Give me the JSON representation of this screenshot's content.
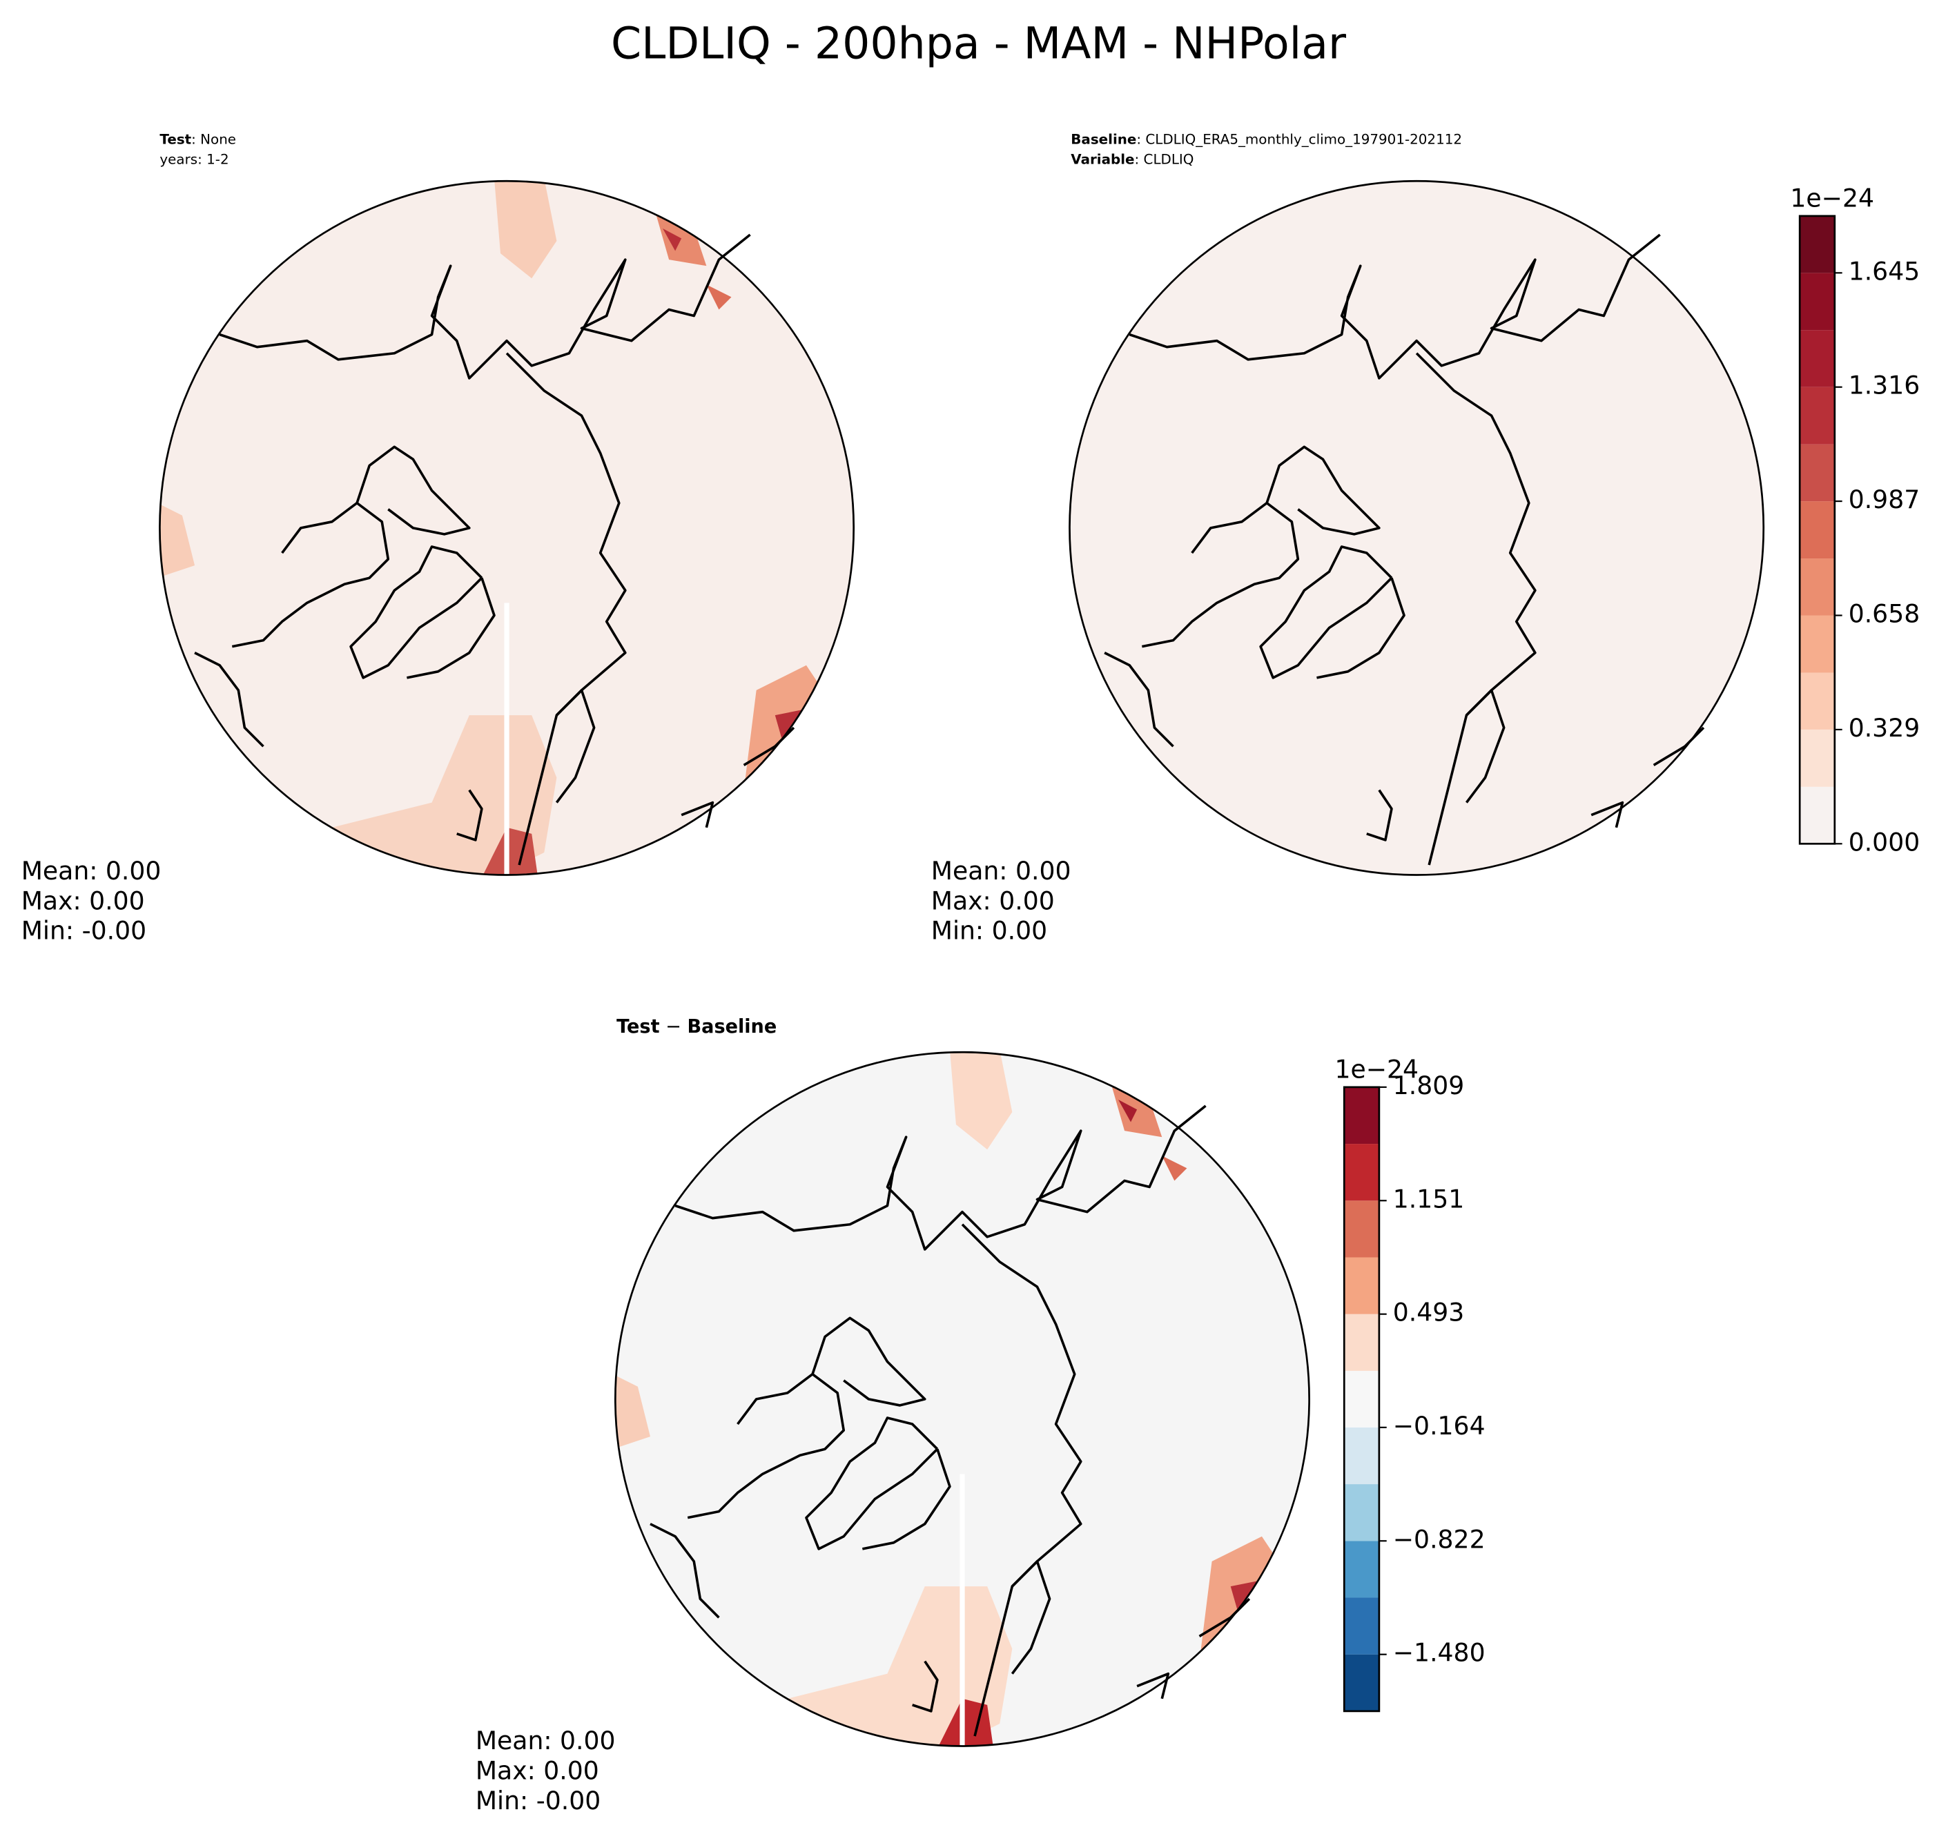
{
  "title": "CLDLIQ - 200hpa - MAM - NHPolar",
  "panels": [
    {
      "header": [
        {
          "key": "Test",
          "text": ": None"
        },
        {
          "text": "years: 1-2"
        }
      ],
      "stats": [
        "Mean:  0.00",
        "Max:  0.00",
        "Min: -0.00"
      ]
    },
    {
      "header": [
        {
          "key": "Baseline",
          "text": ": CLDLIQ_ERA5_monthly_climo_197901-202112"
        },
        {
          "key": "Variable",
          "text": ": CLDLIQ"
        }
      ],
      "stats": [
        "Mean:  0.00",
        "Max:  0.00",
        "Min:  0.00"
      ]
    },
    {
      "header": [
        {
          "key": "Test",
          "text": " − ",
          "key2": "Baseline"
        }
      ],
      "stats": [
        "Mean:  0.00",
        "Max:  0.00",
        "Min: -0.00"
      ]
    }
  ],
  "colorbars": [
    {
      "exponent": "1e−24",
      "lim": [
        0,
        1.809
      ],
      "levels": [
        0,
        0.164,
        0.329,
        0.493,
        0.658,
        0.822,
        0.987,
        1.151,
        1.316,
        1.48,
        1.645,
        1.809
      ],
      "colors": [
        "#f7f2f0",
        "#fbe2d4",
        "#fbcbb3",
        "#f6ad8d",
        "#eb8e70",
        "#dd6e57",
        "#c9504a",
        "#b83038",
        "#a71d2e",
        "#900f24",
        "#6f0a1e"
      ],
      "ticks": [
        {
          "value": 0,
          "label": "0.000"
        },
        {
          "value": 0.329,
          "label": "0.329"
        },
        {
          "value": 0.658,
          "label": "0.658"
        },
        {
          "value": 0.987,
          "label": "0.987"
        },
        {
          "value": 1.316,
          "label": "1.316"
        },
        {
          "value": 1.645,
          "label": "1.645"
        }
      ]
    },
    {
      "exponent": "1e−24",
      "lim": [
        -1.809,
        1.809
      ],
      "levels": [
        -1.809,
        -1.48,
        -1.151,
        -0.822,
        -0.493,
        -0.164,
        0.164,
        0.493,
        0.822,
        1.151,
        1.48,
        1.809
      ],
      "colors": [
        "#0d4a87",
        "#2a71b2",
        "#4a98c9",
        "#9dcde3",
        "#d6e7f1",
        "#f7f7f7",
        "#fbdccb",
        "#f4a582",
        "#dc6e57",
        "#c0272d",
        "#8c0d25"
      ],
      "ticks": [
        {
          "value": -1.48,
          "label": "−1.480"
        },
        {
          "value": -0.822,
          "label": "−0.822"
        },
        {
          "value": -0.164,
          "label": "−0.164"
        },
        {
          "value": 0.493,
          "label": "0.493"
        },
        {
          "value": 1.151,
          "label": "1.151"
        },
        {
          "value": 1.809,
          "label": "1.809"
        }
      ]
    }
  ]
}
